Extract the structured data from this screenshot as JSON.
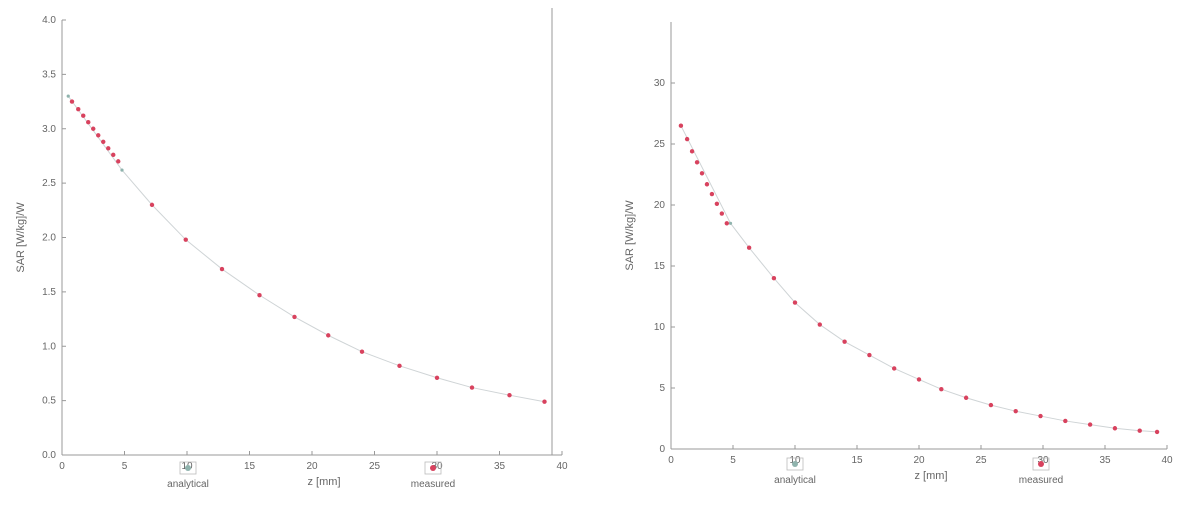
{
  "colors": {
    "analytical": "#8fb3ad",
    "measured": "#d8425e",
    "axis": "#999999"
  },
  "chart_data": [
    {
      "type": "scatter",
      "xlabel": "z [mm]",
      "ylabel": "SAR [W/kg]/W",
      "xlim": [
        0,
        40
      ],
      "ylim": [
        0,
        4
      ],
      "xticks": [
        "0",
        "5",
        "10",
        "15",
        "20",
        "25",
        "30",
        "35",
        "40"
      ],
      "yticks": [
        "0.0",
        "0.5",
        "1.0",
        "1.5",
        "2.0",
        "2.5",
        "3.0",
        "3.5",
        "4.0"
      ],
      "legend": [
        "analytical",
        "measured"
      ],
      "legend_position": "bottom",
      "grid": false,
      "series": [
        {
          "name": "analytical",
          "x": [
            0.5,
            4.8,
            7.2,
            9.9,
            12.8,
            15.8,
            18.6,
            21.3,
            24.0,
            27.0,
            30.0,
            32.8,
            35.8,
            38.6
          ],
          "y": [
            3.3,
            2.62,
            2.3,
            1.98,
            1.71,
            1.47,
            1.27,
            1.1,
            0.95,
            0.82,
            0.71,
            0.62,
            0.55,
            0.49
          ]
        },
        {
          "name": "measured",
          "x": [
            0.8,
            1.3,
            1.7,
            2.1,
            2.5,
            2.9,
            3.3,
            3.7,
            4.1,
            4.5,
            7.2,
            9.9,
            12.8,
            15.8,
            18.6,
            21.3,
            24.0,
            27.0,
            30.0,
            32.8,
            35.8,
            38.6
          ],
          "y": [
            3.25,
            3.18,
            3.12,
            3.06,
            3.0,
            2.94,
            2.88,
            2.82,
            2.76,
            2.7,
            2.3,
            1.98,
            1.71,
            1.47,
            1.27,
            1.1,
            0.95,
            0.82,
            0.71,
            0.62,
            0.55,
            0.49
          ]
        }
      ]
    },
    {
      "type": "scatter",
      "xlabel": "z [mm]",
      "ylabel": "SAR [W/kg]/W",
      "xlim": [
        0,
        40
      ],
      "ylim": [
        0,
        35
      ],
      "xticks": [
        "0",
        "5",
        "10",
        "15",
        "20",
        "25",
        "30",
        "35",
        "40"
      ],
      "yticks": [
        "0",
        "5",
        "10",
        "15",
        "20",
        "25",
        "30"
      ],
      "legend": [
        "analytical",
        "measured"
      ],
      "legend_position": "bottom",
      "grid": false,
      "series": [
        {
          "name": "analytical",
          "x": [
            0.8,
            4.8,
            6.3,
            8.3,
            10.0,
            12.0,
            14.0,
            16.0,
            18.0,
            20.0,
            21.8,
            23.8,
            25.8,
            27.8,
            29.8,
            31.8,
            33.8,
            35.8,
            37.8,
            39.2
          ],
          "y": [
            26.5,
            18.5,
            16.5,
            14.0,
            12.0,
            10.2,
            8.8,
            7.7,
            6.6,
            5.7,
            4.9,
            4.2,
            3.6,
            3.1,
            2.7,
            2.3,
            2.0,
            1.7,
            1.5,
            1.4
          ]
        },
        {
          "name": "measured",
          "x": [
            0.8,
            1.3,
            1.7,
            2.1,
            2.5,
            2.9,
            3.3,
            3.7,
            4.1,
            4.5,
            6.3,
            8.3,
            10.0,
            12.0,
            14.0,
            16.0,
            18.0,
            20.0,
            21.8,
            23.8,
            25.8,
            27.8,
            29.8,
            31.8,
            33.8,
            35.8,
            37.8,
            39.2
          ],
          "y": [
            26.5,
            25.4,
            24.4,
            23.5,
            22.6,
            21.7,
            20.9,
            20.1,
            19.3,
            18.5,
            16.5,
            14.0,
            12.0,
            10.2,
            8.8,
            7.7,
            6.6,
            5.7,
            4.9,
            4.2,
            3.6,
            3.1,
            2.7,
            2.3,
            2.0,
            1.7,
            1.5,
            1.4
          ]
        }
      ]
    }
  ]
}
